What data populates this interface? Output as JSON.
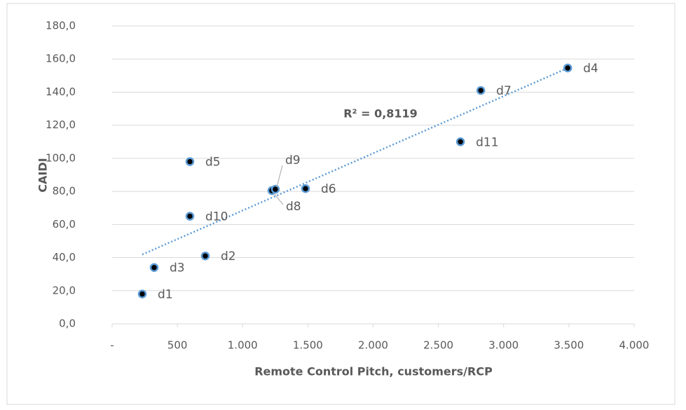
{
  "chart_data": {
    "type": "scatter",
    "x_label": "Remote Control Pitch, customers/RCP",
    "y_label": "CAIDI",
    "x": [
      231,
      714,
      322,
      3491,
      596,
      1482,
      2825,
      1224,
      1251,
      596,
      2669
    ],
    "values": [
      18,
      41,
      34,
      154.6,
      98,
      81.7,
      141,
      80.5,
      81.3,
      65,
      110
    ],
    "labels": [
      "d1",
      "d2",
      "d3",
      "d4",
      "d5",
      "d6",
      "d7",
      "d8",
      "d9",
      "d10",
      "d11"
    ],
    "marker_color": "#000000",
    "marker_edge": "#5b9bd5",
    "trendline": {
      "type": "linear",
      "color": "#5b9bd5",
      "label": "R² = 0,8119"
    },
    "xlim": [
      0,
      4000
    ],
    "xticks": [
      {
        "value": 0,
        "label": "-"
      },
      500,
      {
        "value": 1000,
        "label": "1.000"
      },
      {
        "value": 1500,
        "label": "1.500"
      },
      {
        "value": 2000,
        "label": "2.000"
      },
      {
        "value": 2500,
        "label": "2.500"
      },
      {
        "value": 3000,
        "label": "3.000"
      },
      {
        "value": 3500,
        "label": "3.500"
      },
      {
        "value": 4000,
        "label": "4.000"
      }
    ],
    "ylim": [
      0,
      180
    ],
    "yticks": [
      {
        "value": 0,
        "label": "0,0"
      },
      {
        "value": 20,
        "label": "20,0"
      },
      {
        "value": 40,
        "label": "40,0"
      },
      {
        "value": 60,
        "label": "60,0"
      },
      {
        "value": 80,
        "label": "80,0"
      },
      {
        "value": 100,
        "label": "100,0"
      },
      {
        "value": 120,
        "label": "120,0"
      },
      {
        "value": 140,
        "label": "140,0"
      },
      {
        "value": 160,
        "label": "160,0"
      },
      {
        "value": 180,
        "label": "180,0"
      }
    ],
    "grid": true
  }
}
